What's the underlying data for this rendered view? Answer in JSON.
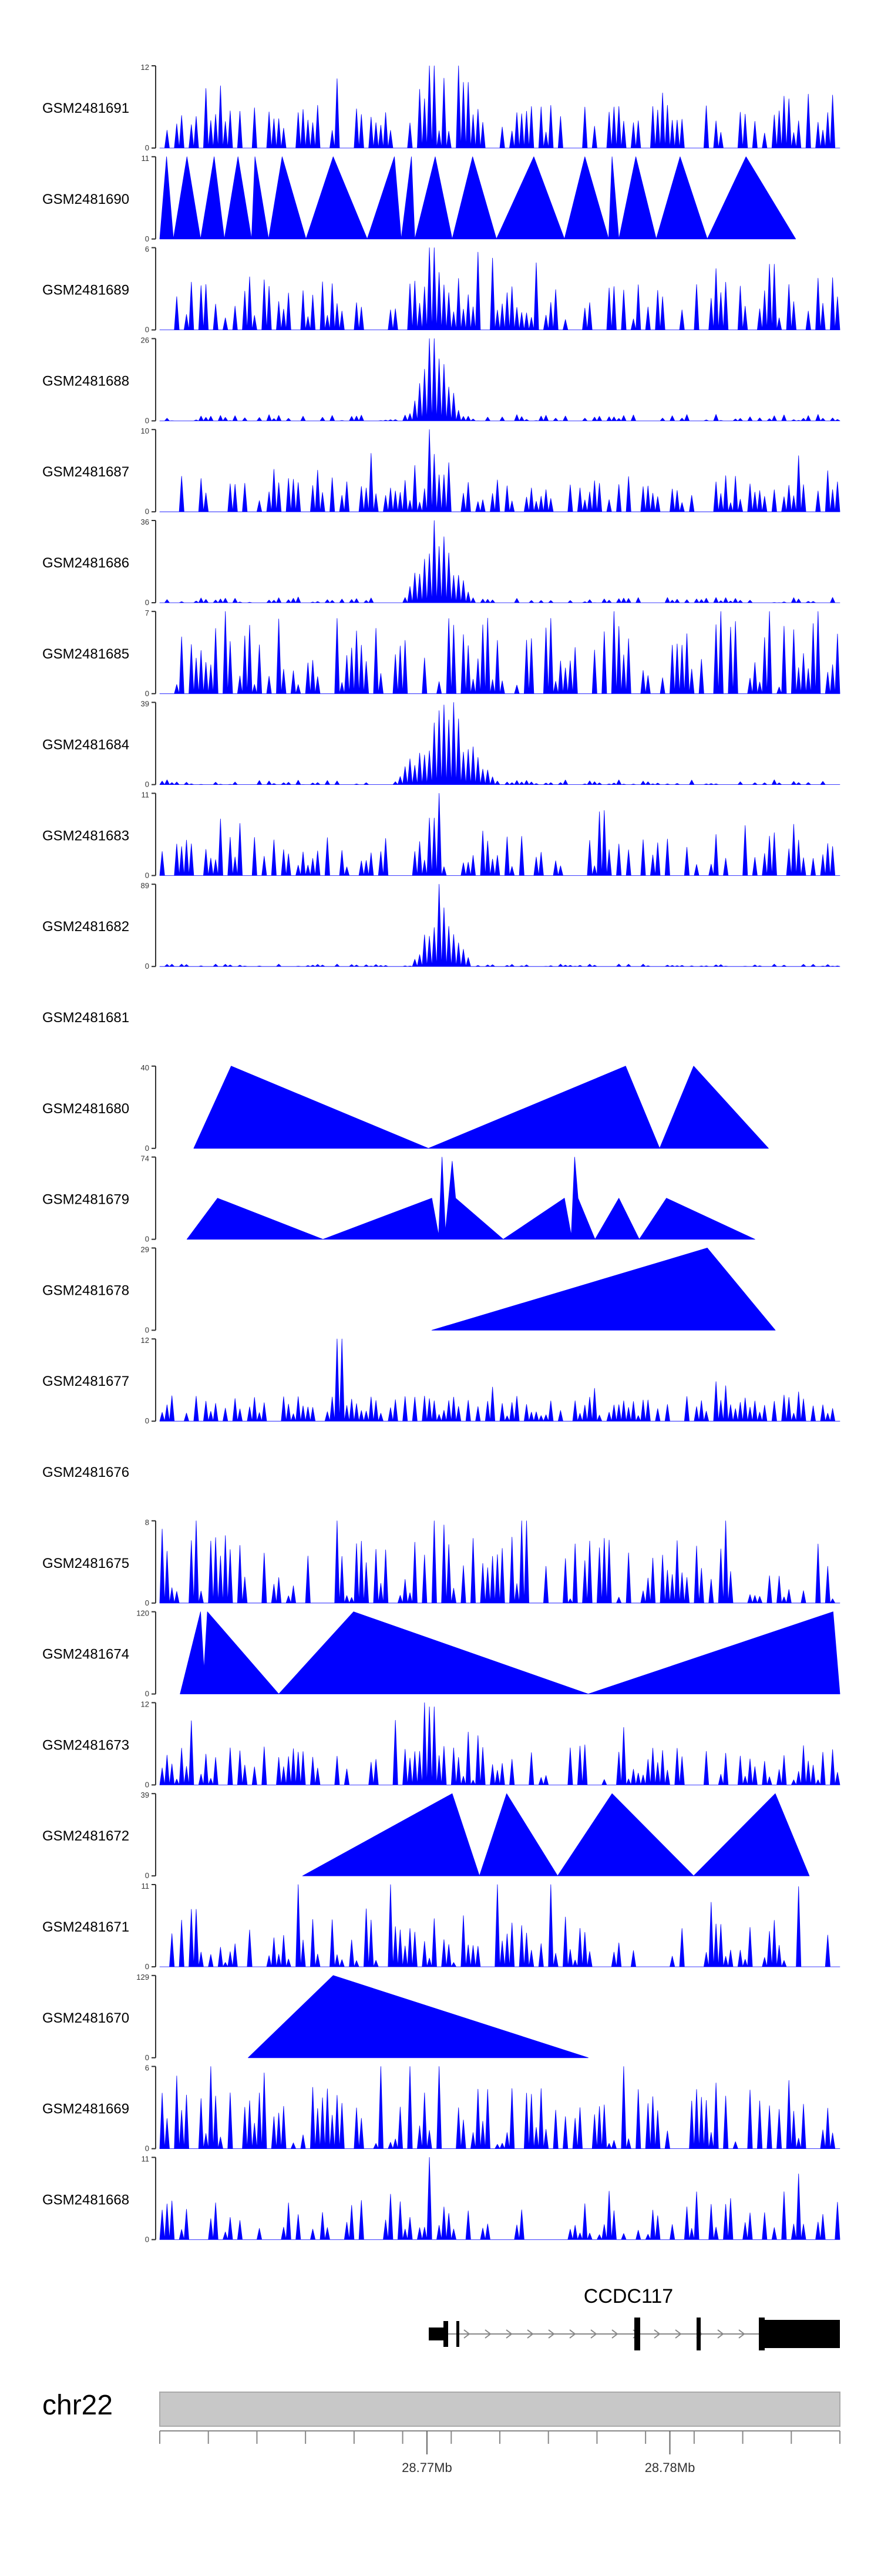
{
  "chart_data": {
    "type": "area",
    "title": "",
    "xlabel": "",
    "ylabel": "",
    "xlim": [
      28.759,
      28.787
    ],
    "chromosome": {
      "label": "chr22"
    },
    "genome_axis": {
      "unit": "Mb",
      "tick_labels": [
        {
          "value": 28.77,
          "label": "28.77Mb"
        },
        {
          "value": 28.78,
          "label": "28.78Mb"
        }
      ]
    },
    "gene": {
      "name": "CCDC117"
    },
    "colors": {
      "signal": "#0000ff",
      "axis": "#333333",
      "gene": "#000000",
      "ideogram": "#c8c8c8"
    },
    "tracks": [
      {
        "name": "GSM2481691",
        "ymax": 12,
        "ylim": [
          0,
          12
        ],
        "style": "dense",
        "seed": 11,
        "base": 0.18,
        "amp": 0.35,
        "spikes": [
          {
            "x": 0.4,
            "h": 1.0
          },
          {
            "x": 0.42,
            "h": 0.85
          },
          {
            "x": 0.44,
            "h": 1.0
          },
          {
            "x": 0.45,
            "h": 0.8
          },
          {
            "x": 0.39,
            "h": 0.6
          },
          {
            "x": 0.67,
            "h": 0.5
          }
        ]
      },
      {
        "name": "GSM2481690",
        "ymax": 11,
        "ylim": [
          0,
          11
        ],
        "style": "triangles",
        "points": [
          [
            0.0,
            0
          ],
          [
            0.01,
            1
          ],
          [
            0.02,
            0
          ],
          [
            0.04,
            1
          ],
          [
            0.06,
            0
          ],
          [
            0.08,
            1
          ],
          [
            0.095,
            0
          ],
          [
            0.115,
            1
          ],
          [
            0.135,
            0
          ],
          [
            0.14,
            1
          ],
          [
            0.16,
            0
          ],
          [
            0.18,
            1
          ],
          [
            0.215,
            0
          ],
          [
            0.255,
            1
          ],
          [
            0.305,
            0
          ],
          [
            0.345,
            1
          ],
          [
            0.355,
            0
          ],
          [
            0.37,
            1
          ],
          [
            0.375,
            0
          ],
          [
            0.405,
            1
          ],
          [
            0.43,
            0
          ],
          [
            0.46,
            1
          ],
          [
            0.495,
            0
          ],
          [
            0.55,
            1
          ],
          [
            0.595,
            0
          ],
          [
            0.625,
            1
          ],
          [
            0.66,
            0
          ],
          [
            0.665,
            1
          ],
          [
            0.675,
            0
          ],
          [
            0.7,
            1
          ],
          [
            0.73,
            0
          ],
          [
            0.765,
            1
          ],
          [
            0.805,
            0
          ],
          [
            0.862,
            1
          ],
          [
            0.935,
            0
          ]
        ]
      },
      {
        "name": "GSM2481689",
        "ymax": 6,
        "ylim": [
          0,
          6
        ],
        "style": "dense",
        "seed": 23,
        "base": 0.12,
        "amp": 0.55,
        "spikes": [
          {
            "x": 0.4,
            "h": 1.0
          },
          {
            "x": 0.41,
            "h": 0.7
          },
          {
            "x": 0.9,
            "h": 0.8
          }
        ]
      },
      {
        "name": "GSM2481688",
        "ymax": 26,
        "ylim": [
          0,
          26
        ],
        "style": "peak",
        "seed": 31,
        "base": 0.0,
        "amp": 0.08,
        "peakCenter": 0.405,
        "peakWidth": 0.02,
        "spikes": [
          {
            "x": 0.4,
            "h": 1.0
          },
          {
            "x": 0.41,
            "h": 0.75
          },
          {
            "x": 0.42,
            "h": 0.5
          }
        ]
      },
      {
        "name": "GSM2481687",
        "ymax": 10,
        "ylim": [
          0,
          10
        ],
        "style": "dense",
        "seed": 37,
        "base": 0.1,
        "amp": 0.35,
        "spikes": [
          {
            "x": 0.395,
            "h": 1.0
          },
          {
            "x": 0.405,
            "h": 0.7
          },
          {
            "x": 0.415,
            "h": 0.45
          },
          {
            "x": 0.98,
            "h": 0.5
          }
        ]
      },
      {
        "name": "GSM2481686",
        "ymax": 36,
        "ylim": [
          0,
          36
        ],
        "style": "peak",
        "seed": 41,
        "base": 0.0,
        "amp": 0.07,
        "peakCenter": 0.41,
        "peakWidth": 0.025,
        "spikes": [
          {
            "x": 0.405,
            "h": 1.0
          },
          {
            "x": 0.415,
            "h": 0.6
          }
        ]
      },
      {
        "name": "GSM2481685",
        "ymax": 7,
        "ylim": [
          0,
          7
        ],
        "style": "dense",
        "seed": 47,
        "base": 0.08,
        "amp": 0.85,
        "spikes": [
          {
            "x": 0.67,
            "h": 1.0
          },
          {
            "x": 0.57,
            "h": 0.8
          }
        ]
      },
      {
        "name": "GSM2481684",
        "ymax": 39,
        "ylim": [
          0,
          39
        ],
        "style": "peak",
        "seed": 53,
        "base": 0.0,
        "amp": 0.06,
        "peakCenter": 0.42,
        "peakWidth": 0.035,
        "spikes": [
          {
            "x": 0.41,
            "h": 0.9
          },
          {
            "x": 0.43,
            "h": 1.0
          },
          {
            "x": 0.44,
            "h": 0.8
          }
        ]
      },
      {
        "name": "GSM2481683",
        "ymax": 11,
        "ylim": [
          0,
          11
        ],
        "style": "dense",
        "seed": 59,
        "base": 0.1,
        "amp": 0.4,
        "spikes": [
          {
            "x": 0.41,
            "h": 1.0
          },
          {
            "x": 0.4,
            "h": 0.7
          },
          {
            "x": 0.82,
            "h": 0.5
          }
        ]
      },
      {
        "name": "GSM2481682",
        "ymax": 89,
        "ylim": [
          0,
          89
        ],
        "style": "peak",
        "seed": 61,
        "base": 0.0,
        "amp": 0.03,
        "peakCenter": 0.415,
        "peakWidth": 0.02,
        "spikes": [
          {
            "x": 0.41,
            "h": 1.0
          },
          {
            "x": 0.42,
            "h": 0.7
          }
        ]
      },
      {
        "name": "GSM2481681",
        "style": "empty"
      },
      {
        "name": "GSM2481680",
        "ymax": 40,
        "ylim": [
          0,
          40
        ],
        "style": "triangles",
        "points": [
          [
            0.05,
            0
          ],
          [
            0.105,
            1
          ],
          [
            0.395,
            0
          ],
          [
            0.685,
            1
          ],
          [
            0.735,
            0
          ],
          [
            0.785,
            1
          ],
          [
            0.895,
            0
          ]
        ]
      },
      {
        "name": "GSM2481679",
        "ymax": 74,
        "ylim": [
          0,
          74
        ],
        "style": "triangles",
        "points": [
          [
            0.04,
            0
          ],
          [
            0.085,
            0.5
          ],
          [
            0.24,
            0
          ],
          [
            0.4,
            0.5
          ],
          [
            0.41,
            0.05
          ],
          [
            0.415,
            1
          ],
          [
            0.42,
            0.1
          ],
          [
            0.43,
            0.95
          ],
          [
            0.435,
            0.5
          ],
          [
            0.505,
            0
          ],
          [
            0.595,
            0.5
          ],
          [
            0.605,
            0.05
          ],
          [
            0.61,
            1
          ],
          [
            0.615,
            0.5
          ],
          [
            0.64,
            0
          ],
          [
            0.675,
            0.5
          ],
          [
            0.705,
            0
          ],
          [
            0.745,
            0.5
          ],
          [
            0.875,
            0
          ]
        ]
      },
      {
        "name": "GSM2481678",
        "ymax": 29,
        "ylim": [
          0,
          29
        ],
        "style": "triangles",
        "points": [
          [
            0.4,
            0
          ],
          [
            0.805,
            1
          ],
          [
            0.905,
            0
          ]
        ]
      },
      {
        "name": "GSM2481677",
        "ymax": 12,
        "ylim": [
          0,
          12
        ],
        "style": "dense",
        "seed": 71,
        "base": 0.06,
        "amp": 0.25,
        "spikes": [
          {
            "x": 0.265,
            "h": 1.0
          },
          {
            "x": 0.27,
            "h": 0.6
          },
          {
            "x": 0.64,
            "h": 0.4
          }
        ]
      },
      {
        "name": "GSM2481676",
        "style": "empty"
      },
      {
        "name": "GSM2481675",
        "ymax": 8,
        "ylim": [
          0,
          8
        ],
        "style": "dense",
        "seed": 79,
        "base": 0.05,
        "amp": 0.8,
        "spikes": [
          {
            "x": 0.0,
            "h": 0.9
          },
          {
            "x": 0.83,
            "h": 1.0
          },
          {
            "x": 0.42,
            "h": 0.95
          }
        ]
      },
      {
        "name": "GSM2481674",
        "ymax": 120,
        "ylim": [
          0,
          120
        ],
        "style": "triangles",
        "points": [
          [
            0.03,
            0
          ],
          [
            0.06,
            1
          ],
          [
            0.065,
            0.3
          ],
          [
            0.07,
            1
          ],
          [
            0.175,
            0
          ],
          [
            0.285,
            1
          ],
          [
            0.63,
            0
          ],
          [
            0.99,
            1
          ],
          [
            1.0,
            0
          ]
        ]
      },
      {
        "name": "GSM2481673",
        "ymax": 12,
        "ylim": [
          0,
          12
        ],
        "style": "dense",
        "seed": 89,
        "base": 0.05,
        "amp": 0.45,
        "spikes": [
          {
            "x": 0.39,
            "h": 1.0
          },
          {
            "x": 0.4,
            "h": 0.95
          },
          {
            "x": 0.68,
            "h": 0.7
          },
          {
            "x": 0.47,
            "h": 0.6
          }
        ]
      },
      {
        "name": "GSM2481672",
        "ymax": 39,
        "ylim": [
          0,
          39
        ],
        "style": "triangles",
        "points": [
          [
            0.21,
            0
          ],
          [
            0.43,
            1
          ],
          [
            0.47,
            0
          ],
          [
            0.51,
            1
          ],
          [
            0.585,
            0
          ],
          [
            0.665,
            1
          ],
          [
            0.785,
            0
          ],
          [
            0.905,
            1
          ],
          [
            0.955,
            0
          ]
        ]
      },
      {
        "name": "GSM2481671",
        "ymax": 11,
        "ylim": [
          0,
          11
        ],
        "style": "dense",
        "seed": 97,
        "base": 0.04,
        "amp": 0.6,
        "spikes": [
          {
            "x": 0.575,
            "h": 1.0
          },
          {
            "x": 0.05,
            "h": 0.7
          }
        ]
      },
      {
        "name": "GSM2481670",
        "ymax": 129,
        "ylim": [
          0,
          129
        ],
        "style": "triangles",
        "points": [
          [
            0.13,
            0
          ],
          [
            0.255,
            1
          ],
          [
            0.63,
            0
          ]
        ]
      },
      {
        "name": "GSM2481669",
        "ymax": 6,
        "ylim": [
          0,
          6
        ],
        "style": "dense",
        "seed": 101,
        "base": 0.05,
        "amp": 0.7,
        "spikes": [
          {
            "x": 0.41,
            "h": 1.0
          },
          {
            "x": 0.82,
            "h": 0.8
          }
        ]
      },
      {
        "name": "GSM2481668",
        "ymax": 11,
        "ylim": [
          0,
          11
        ],
        "style": "dense",
        "seed": 107,
        "base": 0.06,
        "amp": 0.45,
        "spikes": [
          {
            "x": 0.395,
            "h": 1.0
          },
          {
            "x": 0.94,
            "h": 0.8
          }
        ]
      }
    ]
  }
}
